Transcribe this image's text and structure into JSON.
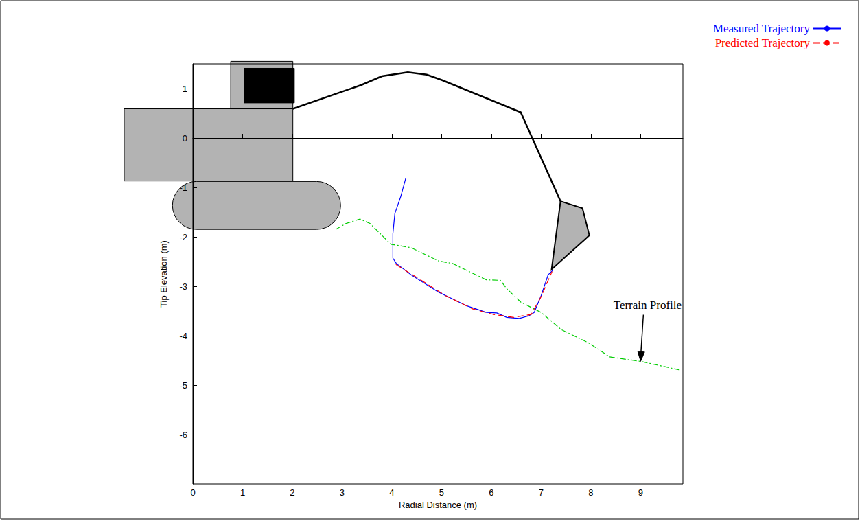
{
  "chart_data": {
    "type": "line",
    "x_label": "Radial Distance (m)",
    "y_label": "Tip Elevation (m)",
    "xlim": [
      0,
      9.85
    ],
    "ylim": [
      -7,
      1.5
    ],
    "xticks": [
      0,
      1,
      2,
      3,
      4,
      5,
      6,
      7,
      8,
      9
    ],
    "yticks": [
      -6,
      -5,
      -4,
      -3,
      -2,
      -1,
      0,
      1
    ],
    "grid": false,
    "legend": "upper right",
    "series": [
      {
        "name": "Measured Trajectory",
        "color": "#0000ff",
        "line_style": "solid",
        "x": [
          4.28,
          4.18,
          4.06,
          4.02,
          4.02,
          4.09,
          4.39,
          4.94,
          5.49,
          5.9,
          6.11,
          6.31,
          6.56,
          6.75,
          6.86,
          7.0,
          7.14,
          7.24
        ],
        "values": [
          -0.81,
          -1.18,
          -1.53,
          -1.94,
          -2.43,
          -2.54,
          -2.77,
          -3.12,
          -3.39,
          -3.53,
          -3.54,
          -3.63,
          -3.65,
          -3.6,
          -3.53,
          -3.19,
          -2.77,
          -2.67
        ]
      },
      {
        "name": "Predicted Trajectory",
        "color": "#ff0000",
        "line_style": "dashed",
        "x": [
          4.08,
          4.53,
          5.08,
          5.63,
          6.04,
          6.45,
          6.8,
          7.0,
          7.22
        ],
        "values": [
          -2.56,
          -2.84,
          -3.19,
          -3.46,
          -3.57,
          -3.63,
          -3.57,
          -3.21,
          -2.7
        ]
      },
      {
        "color": "#00cc00",
        "line_style": "dashdot",
        "x": [
          2.87,
          3.08,
          3.36,
          3.56,
          3.98,
          4.39,
          4.94,
          5.22,
          5.63,
          5.9,
          6.18,
          6.31,
          6.59,
          7.0,
          7.41,
          7.96,
          8.38,
          9.0,
          9.82
        ],
        "values": [
          -1.85,
          -1.73,
          -1.64,
          -1.73,
          -2.15,
          -2.22,
          -2.49,
          -2.54,
          -2.74,
          -2.87,
          -2.88,
          -3.05,
          -3.32,
          -3.53,
          -3.88,
          -4.15,
          -4.43,
          -4.52,
          -4.7
        ]
      }
    ],
    "annotations": [
      {
        "text": "Terrain Profile",
        "x": 9.0,
        "y": -4.52
      }
    ]
  }
}
